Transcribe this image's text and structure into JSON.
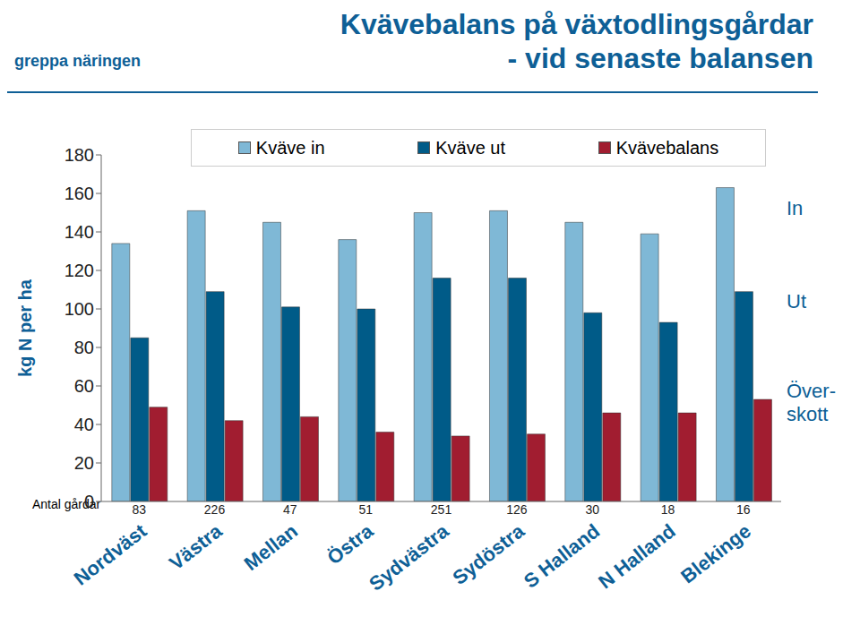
{
  "chart_data": {
    "type": "bar",
    "title": "Kvävebalans på växtodlingsgårdar",
    "subtitle": "- vid senaste balansen",
    "logo_text": "greppa näringen",
    "y_label": "kg N per ha",
    "categories": [
      "Nordväst",
      "Västra",
      "Mellan",
      "Östra",
      "Sydvästra",
      "Sydöstra",
      "S Halland",
      "N Halland",
      "Blekinge"
    ],
    "series": [
      {
        "name": "Kväve in",
        "color": "#7fb8d6",
        "values": [
          134,
          151,
          145,
          136,
          150,
          151,
          145,
          139,
          163
        ]
      },
      {
        "name": "Kväve ut",
        "color": "#005b88",
        "values": [
          85,
          109,
          101,
          100,
          116,
          116,
          98,
          93,
          109
        ]
      },
      {
        "name": "Kvävebalans",
        "color": "#a11d30",
        "values": [
          49,
          42,
          44,
          36,
          34,
          35,
          46,
          46,
          53
        ]
      }
    ],
    "farm_counts_label": "Antal gårdar",
    "farm_counts": [
      83,
      226,
      47,
      51,
      251,
      126,
      30,
      18,
      16
    ],
    "annotations": [
      "In",
      "Ut",
      "Över-skott"
    ],
    "ylim": [
      0,
      180
    ],
    "yticks": [
      0,
      20,
      40,
      60,
      80,
      100,
      120,
      140,
      160,
      180
    ],
    "grid": false,
    "legend": "top"
  }
}
